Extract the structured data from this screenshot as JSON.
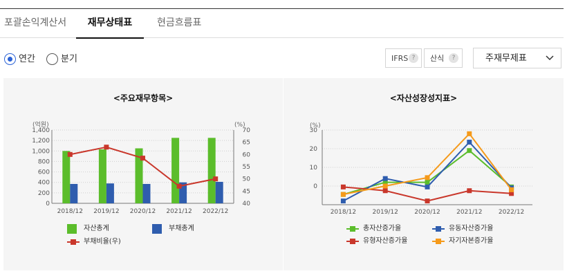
{
  "tabs": [
    {
      "label": "포괄손익계산서",
      "active": false
    },
    {
      "label": "재무상태표",
      "active": true
    },
    {
      "label": "현금흐름표",
      "active": false
    }
  ],
  "period_options": [
    {
      "label": "연간",
      "checked": true
    },
    {
      "label": "분기",
      "checked": false
    }
  ],
  "toolbar": {
    "ifrs_label": "IFRS",
    "formula_label": "산식",
    "help_glyph": "?",
    "statement_select_value": "주재무제표"
  },
  "colors": {
    "green": "#5bbd2b",
    "blue": "#2f5dae",
    "red": "#c9372b",
    "orange": "#f59a1b",
    "radio_accent": "#2a62d6"
  },
  "chart_data": [
    {
      "type": "bar+line",
      "title": "<주요재무항목>",
      "categories": [
        "2018/12",
        "2019/12",
        "2020/12",
        "2021/12",
        "2022/12"
      ],
      "left_axis": {
        "label": "(억원)",
        "lim": [
          0,
          1400
        ],
        "ticks": [
          "1,400",
          "1,200",
          "1,000",
          "800",
          "600",
          "400",
          "200",
          "0"
        ]
      },
      "right_axis": {
        "label": "(%)",
        "lim": [
          40,
          70
        ],
        "ticks": [
          "70",
          "65",
          "60",
          "55",
          "50",
          "45",
          "40"
        ]
      },
      "series": [
        {
          "name": "자산총계",
          "kind": "bar",
          "axis": "left",
          "color": "#5bbd2b",
          "values": [
            1000,
            1030,
            1050,
            1250,
            1250
          ]
        },
        {
          "name": "부채총계",
          "kind": "bar",
          "axis": "left",
          "color": "#2f5dae",
          "values": [
            370,
            380,
            370,
            400,
            410
          ]
        },
        {
          "name": "부채비율(우)",
          "kind": "line",
          "axis": "right",
          "color": "#c9372b",
          "values": [
            60,
            63,
            58.5,
            47,
            50
          ]
        }
      ],
      "grid": true,
      "legend": "bottom"
    },
    {
      "type": "line",
      "title": "<자산성장성지표>",
      "categories": [
        "2018/12",
        "2019/12",
        "2020/12",
        "2021/12",
        "2022/12"
      ],
      "left_axis": {
        "label": "(%)",
        "lim": [
          -10,
          30
        ],
        "ticks": [
          "30",
          "20",
          "10",
          "0"
        ]
      },
      "series": [
        {
          "name": "총자산증가율",
          "color": "#5bbd2b",
          "values": [
            -4.5,
            2,
            2,
            19,
            -0.5
          ]
        },
        {
          "name": "유동자산증가율",
          "color": "#2f5dae",
          "values": [
            -8,
            4,
            -0.5,
            23.5,
            -1
          ]
        },
        {
          "name": "유형자산증가율",
          "color": "#c9372b",
          "values": [
            -0.5,
            -2.5,
            -8,
            -2.5,
            -4
          ]
        },
        {
          "name": "자기자본증가율",
          "color": "#f59a1b",
          "values": [
            -4.5,
            0,
            4.5,
            28,
            -2
          ]
        }
      ],
      "grid": true,
      "legend": "bottom"
    }
  ]
}
